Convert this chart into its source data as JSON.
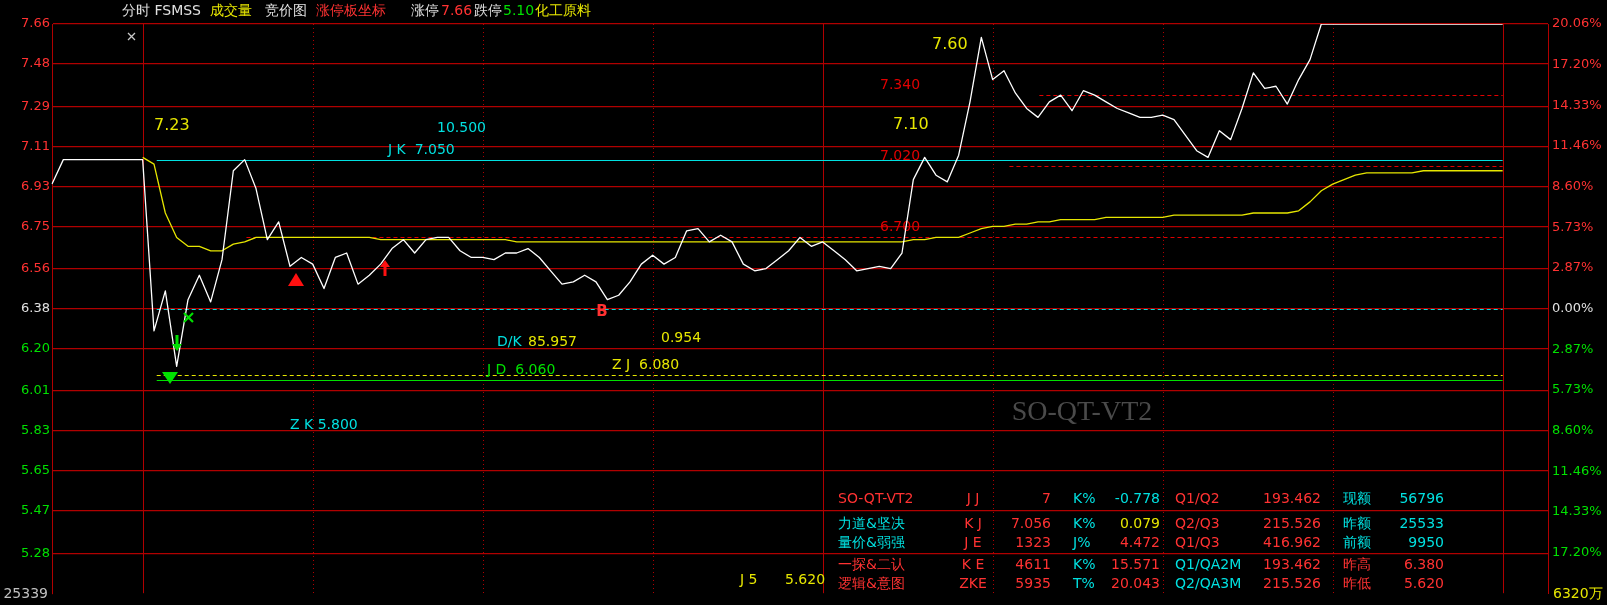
{
  "chart_data": {
    "type": "line",
    "title": "分时 FSMSS",
    "categories": [
      null,
      null,
      null,
      null,
      null,
      null,
      null,
      null,
      null,
      null,
      null,
      null,
      null,
      null,
      null,
      null,
      null,
      null,
      null,
      null,
      null,
      null,
      null,
      null,
      null,
      null,
      null,
      null,
      null,
      null,
      null,
      null,
      null,
      null,
      null,
      null,
      null,
      null,
      null,
      null,
      null,
      null,
      null,
      null,
      null,
      null,
      null,
      null,
      null,
      null,
      null,
      null,
      null,
      null,
      null,
      null,
      null,
      null,
      null,
      null,
      null,
      null,
      null,
      null,
      null,
      null,
      null,
      null,
      null,
      null,
      null,
      null,
      null,
      null,
      null,
      null,
      null,
      null,
      null,
      null,
      null,
      null,
      null,
      null,
      null,
      null,
      null,
      null,
      null,
      null,
      null,
      null,
      null,
      null,
      null,
      null,
      null,
      null,
      null,
      null,
      null,
      null,
      null,
      null,
      null,
      null,
      null,
      null,
      null,
      null,
      null,
      null,
      null,
      null,
      null,
      null,
      null,
      null,
      null,
      null,
      null,
      null,
      null,
      null,
      null,
      null,
      null,
      null,
      null,
      null,
      null,
      null,
      null
    ],
    "series": [
      {
        "color": "#ffffff",
        "values": [
          6.94,
          7.05,
          7.05,
          7.05,
          7.05,
          7.05,
          7.05,
          7.05,
          7.05,
          6.28,
          6.46,
          6.12,
          6.42,
          6.53,
          6.41,
          6.6,
          7.0,
          7.05,
          6.92,
          6.69,
          6.77,
          6.57,
          6.61,
          6.58,
          6.47,
          6.61,
          6.63,
          6.49,
          6.53,
          6.58,
          6.65,
          6.69,
          6.63,
          6.69,
          6.7,
          6.7,
          6.64,
          6.61,
          6.61,
          6.6,
          6.63,
          6.63,
          6.65,
          6.61,
          6.55,
          6.49,
          6.5,
          6.53,
          6.5,
          6.42,
          6.44,
          6.5,
          6.58,
          6.62,
          6.58,
          6.61,
          6.73,
          6.74,
          6.68,
          6.71,
          6.68,
          6.58,
          6.55,
          6.56,
          6.6,
          6.64,
          6.7,
          6.66,
          6.68,
          6.64,
          6.6,
          6.55,
          6.56,
          6.57,
          6.56,
          6.63,
          6.96,
          7.06,
          6.98,
          6.95,
          7.07,
          7.31,
          7.6,
          7.41,
          7.45,
          7.35,
          7.28,
          7.24,
          7.31,
          7.34,
          7.27,
          7.36,
          7.34,
          7.31,
          7.28,
          7.26,
          7.24,
          7.24,
          7.25,
          7.23,
          7.16,
          7.09,
          7.06,
          7.18,
          7.14,
          7.28,
          7.44,
          7.37,
          7.38,
          7.3,
          7.41,
          7.5,
          7.66,
          7.66,
          7.66,
          7.66,
          7.66,
          7.66,
          7.66,
          7.66,
          7.66,
          7.66,
          7.66,
          7.66,
          7.66,
          7.66,
          7.66,
          7.66,
          7.66,
          null,
          null,
          null,
          null
        ]
      },
      {
        "color": "#e6e600",
        "values": [
          null,
          null,
          null,
          null,
          null,
          null,
          null,
          null,
          7.06,
          7.03,
          6.81,
          6.7,
          6.66,
          6.66,
          6.64,
          6.64,
          6.67,
          6.68,
          6.7,
          6.7,
          6.7,
          6.7,
          6.7,
          6.7,
          6.7,
          6.7,
          6.7,
          6.7,
          6.7,
          6.69,
          6.69,
          6.69,
          6.69,
          6.69,
          6.69,
          6.69,
          6.69,
          6.69,
          6.69,
          6.69,
          6.69,
          6.68,
          6.68,
          6.68,
          6.68,
          6.68,
          6.68,
          6.68,
          6.68,
          6.68,
          6.68,
          6.68,
          6.68,
          6.68,
          6.68,
          6.68,
          6.68,
          6.68,
          6.68,
          6.68,
          6.68,
          6.68,
          6.68,
          6.68,
          6.68,
          6.68,
          6.68,
          6.68,
          6.68,
          6.68,
          6.68,
          6.68,
          6.68,
          6.68,
          6.68,
          6.68,
          6.69,
          6.69,
          6.7,
          6.7,
          6.7,
          6.72,
          6.74,
          6.75,
          6.75,
          6.76,
          6.76,
          6.77,
          6.77,
          6.78,
          6.78,
          6.78,
          6.78,
          6.79,
          6.79,
          6.79,
          6.79,
          6.79,
          6.79,
          6.8,
          6.8,
          6.8,
          6.8,
          6.8,
          6.8,
          6.8,
          6.81,
          6.81,
          6.81,
          6.81,
          6.82,
          6.86,
          6.91,
          6.94,
          6.96,
          6.98,
          6.99,
          6.99,
          6.99,
          6.99,
          6.99,
          7.0,
          7.0,
          7.0,
          7.0,
          7.0,
          7.0,
          7.0,
          7.0,
          null,
          null,
          null,
          null
        ]
      }
    ],
    "ylim": [
      5.1,
      7.66
    ],
    "yticks": [
      7.66,
      7.48,
      7.29,
      7.11,
      6.93,
      6.75,
      6.56,
      6.38,
      {
        "value": 6.2,
        "label": "6.20"
      },
      6.01,
      5.83,
      5.65,
      5.47,
      5.28
    ],
    "y2lim": [
      -20.06,
      20.06
    ],
    "y2ticks": [
      {
        "value": 20.06,
        "label": "20.06%"
      },
      {
        "value": 17.2,
        "label": "17.20%"
      },
      {
        "value": 14.33,
        "label": "14.33%"
      },
      {
        "value": 11.46,
        "label": "11.46%"
      },
      {
        "value": 8.6,
        "label": "8.60%"
      },
      {
        "value": 5.73,
        "label": "5.73%"
      },
      {
        "value": 2.87,
        "label": "2.87%"
      },
      {
        "value": 0,
        "label": "0.00%"
      },
      {
        "value": -2.87,
        "label": "2.87%"
      },
      {
        "value": -5.73,
        "label": "5.73%"
      },
      {
        "value": -8.6,
        "label": "8.60%"
      },
      {
        "value": -11.46,
        "label": "11.46%"
      },
      {
        "value": -14.33,
        "label": "14.33%"
      },
      {
        "value": -17.2,
        "label": "17.20%"
      }
    ],
    "grid": true,
    "ref_lines": [
      {
        "axis": "y",
        "value": 7.05,
        "label": "J K  7.050",
        "color": "#00e0e0",
        "line_style": "solid"
      },
      {
        "axis": "y",
        "value": 6.38,
        "color": "#00e0e0",
        "line_style": "dashed"
      },
      {
        "axis": "y",
        "value": 6.08,
        "label": "Z J  6.080",
        "color": "#e6e600",
        "line_style": "dashed"
      },
      {
        "axis": "y",
        "value": 6.06,
        "label": "J D  6.060",
        "color": "#00e000",
        "line_style": "solid"
      },
      {
        "axis": "y",
        "value": 7.34,
        "label": "7.340",
        "color": "#e00000",
        "line_style": "dashed"
      },
      {
        "axis": "y",
        "value": 7.02,
        "label": "7.020",
        "color": "#e00000",
        "line_style": "dashed"
      },
      {
        "axis": "y",
        "value": 6.7,
        "label": "6.700",
        "color": "#e00000",
        "line_style": "dashed"
      }
    ],
    "annotations": [
      "成交量",
      "竞价图",
      "涨停板坐标",
      "涨停",
      "7.66",
      "跌停",
      "5.10",
      "化工原料",
      "7.23",
      "10.500",
      "D/K",
      "85.957",
      "0.954",
      "Z K 5.800",
      "J 5",
      "5.620",
      "7.10",
      "7.60",
      "SO-QT-VT2",
      "B",
      "25339",
      "6320万",
      "SO-QT-VT2",
      "J J",
      "7",
      "K%",
      "-0.778",
      "Q1/Q2",
      "193.462",
      "现额",
      "56796",
      "力道&坚决",
      "K J",
      "7.056",
      "K%",
      "0.079",
      "Q2/Q3",
      "215.526",
      "昨额",
      "25533",
      "量价&弱强",
      "J E",
      "1323",
      "J%",
      "4.472",
      "Q1/Q3",
      "416.962",
      "前额",
      "9950",
      "一探&二认",
      "K E",
      "4611",
      "K%",
      "15.571",
      "Q1/QA2M",
      "193.462",
      "昨高",
      "6.380",
      "逻辑&意图",
      "ZKE",
      "5935",
      "T%",
      "20.043",
      "Q2/QA3M",
      "215.526",
      "昨低",
      "5.620"
    ]
  }
}
